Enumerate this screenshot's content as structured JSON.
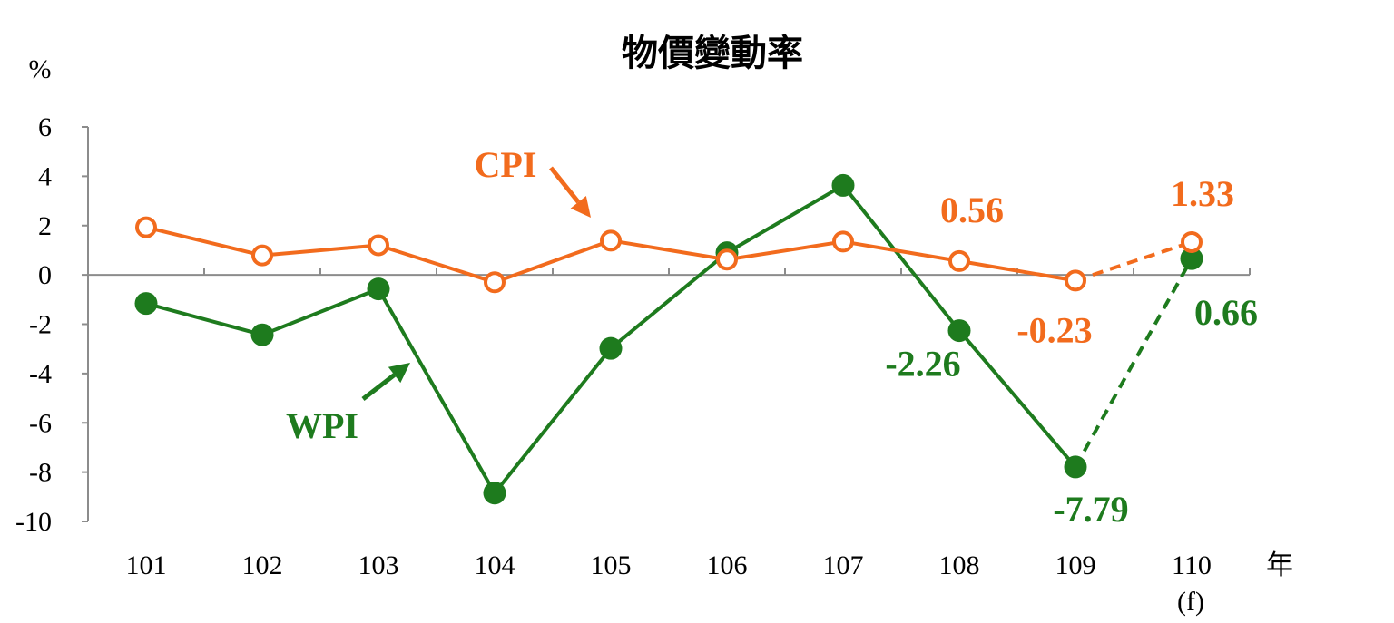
{
  "chart_data": {
    "type": "line",
    "title": "物價變動率",
    "ylabel": "%",
    "xlabel": "年",
    "categories": [
      "101",
      "102",
      "103",
      "104",
      "105",
      "106",
      "107",
      "108",
      "109",
      "110"
    ],
    "forecast_note": "(f)",
    "ylim": [
      -10,
      6
    ],
    "yticks": [
      6,
      4,
      2,
      0,
      -2,
      -4,
      -6,
      -8,
      -10
    ],
    "series": [
      {
        "name": "CPI",
        "color": "#F26B1D",
        "marker": "hollow-circle",
        "values": [
          1.93,
          0.79,
          1.2,
          -0.3,
          1.39,
          0.62,
          1.35,
          0.56,
          -0.23,
          1.33
        ],
        "forecast_from_index": 8
      },
      {
        "name": "WPI",
        "color": "#1E7B1E",
        "marker": "filled-circle",
        "values": [
          -1.16,
          -2.43,
          -0.57,
          -8.85,
          -2.98,
          0.9,
          3.63,
          -2.26,
          -7.79,
          0.66
        ],
        "forecast_from_index": 8
      }
    ],
    "data_labels": {
      "CPI": [
        {
          "index": 7,
          "text": "0.56"
        },
        {
          "index": 8,
          "text": "-0.23"
        },
        {
          "index": 9,
          "text": "1.33"
        }
      ],
      "WPI": [
        {
          "index": 7,
          "text": "-2.26"
        },
        {
          "index": 8,
          "text": "-7.79"
        },
        {
          "index": 9,
          "text": "0.66"
        }
      ]
    },
    "grid": false
  }
}
